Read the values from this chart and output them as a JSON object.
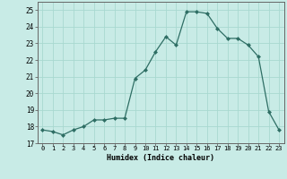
{
  "x": [
    0,
    1,
    2,
    3,
    4,
    5,
    6,
    7,
    8,
    9,
    10,
    11,
    12,
    13,
    14,
    15,
    16,
    17,
    18,
    19,
    20,
    21,
    22,
    23
  ],
  "y": [
    17.8,
    17.7,
    17.5,
    17.8,
    18.0,
    18.4,
    18.4,
    18.5,
    18.5,
    20.9,
    21.4,
    22.5,
    23.4,
    22.9,
    24.9,
    24.9,
    24.8,
    23.9,
    23.3,
    23.3,
    22.9,
    22.2,
    18.9,
    17.8
  ],
  "bg_color": "#c8ebe6",
  "grid_color": "#a8d8d0",
  "line_color": "#2e6e64",
  "marker_color": "#2e6e64",
  "xlabel": "Humidex (Indice chaleur)",
  "ylim": [
    17,
    25.5
  ],
  "xlim": [
    -0.5,
    23.5
  ],
  "yticks": [
    17,
    18,
    19,
    20,
    21,
    22,
    23,
    24,
    25
  ],
  "xticks": [
    0,
    1,
    2,
    3,
    4,
    5,
    6,
    7,
    8,
    9,
    10,
    11,
    12,
    13,
    14,
    15,
    16,
    17,
    18,
    19,
    20,
    21,
    22,
    23
  ]
}
